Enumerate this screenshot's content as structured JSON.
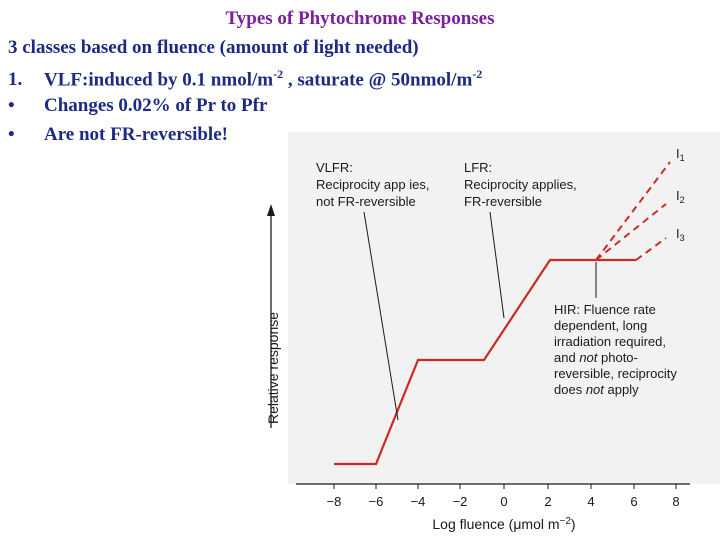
{
  "slide": {
    "title": "Types of Phytochrome Responses",
    "intro": "3 classes based on fluence (amount of light needed)",
    "item1_num": "1.",
    "item1_text": "VLF:induced by 0.1 nmol/m",
    "item1_sup1": "-2",
    "item1_mid": " , saturate @  50nmol/m",
    "item1_sup2": "-2",
    "bullet": "•",
    "bullet1": "Changes 0.02% of Pr to Pfr",
    "bullet2": "Are not FR-reversible!"
  },
  "figure": {
    "ylabel": "Relative response",
    "xlabel_main": "Log fluence (μmol m",
    "xlabel_sup": "−2",
    "xlabel_end": ")",
    "x_ticks": [
      "−8",
      "−6",
      "−4",
      "−2",
      "0",
      "2",
      "4",
      "6",
      "8"
    ],
    "vlfr_title": "VLFR:",
    "vlfr_line2": "Reciprocity app ies,",
    "vlfr_line3": "not FR-reversible",
    "lfr_title": "LFR:",
    "lfr_line2": "Reciprocity applies,",
    "lfr_line3": "FR-reversible",
    "hir_line1": "HIR: Fluence rate",
    "hir_line2": "dependent, long",
    "hir_line3": "irradiation required,",
    "hir_line4_pre": "and ",
    "hir_line4_em": "not",
    "hir_line4_post": " photo-",
    "hir_line5": "reversible, reciprocity",
    "hir_line6_pre": "does ",
    "hir_line6_em": "not",
    "hir_line6_post": " apply",
    "i1_main": "I",
    "i1_sub": "1",
    "i2_main": "I",
    "i2_sub": "2",
    "i3_main": "I",
    "i3_sub": "3",
    "curve_color": "#cc2b24",
    "bg_color": "#f2f2f2",
    "text_color": "#1a1a1a"
  }
}
